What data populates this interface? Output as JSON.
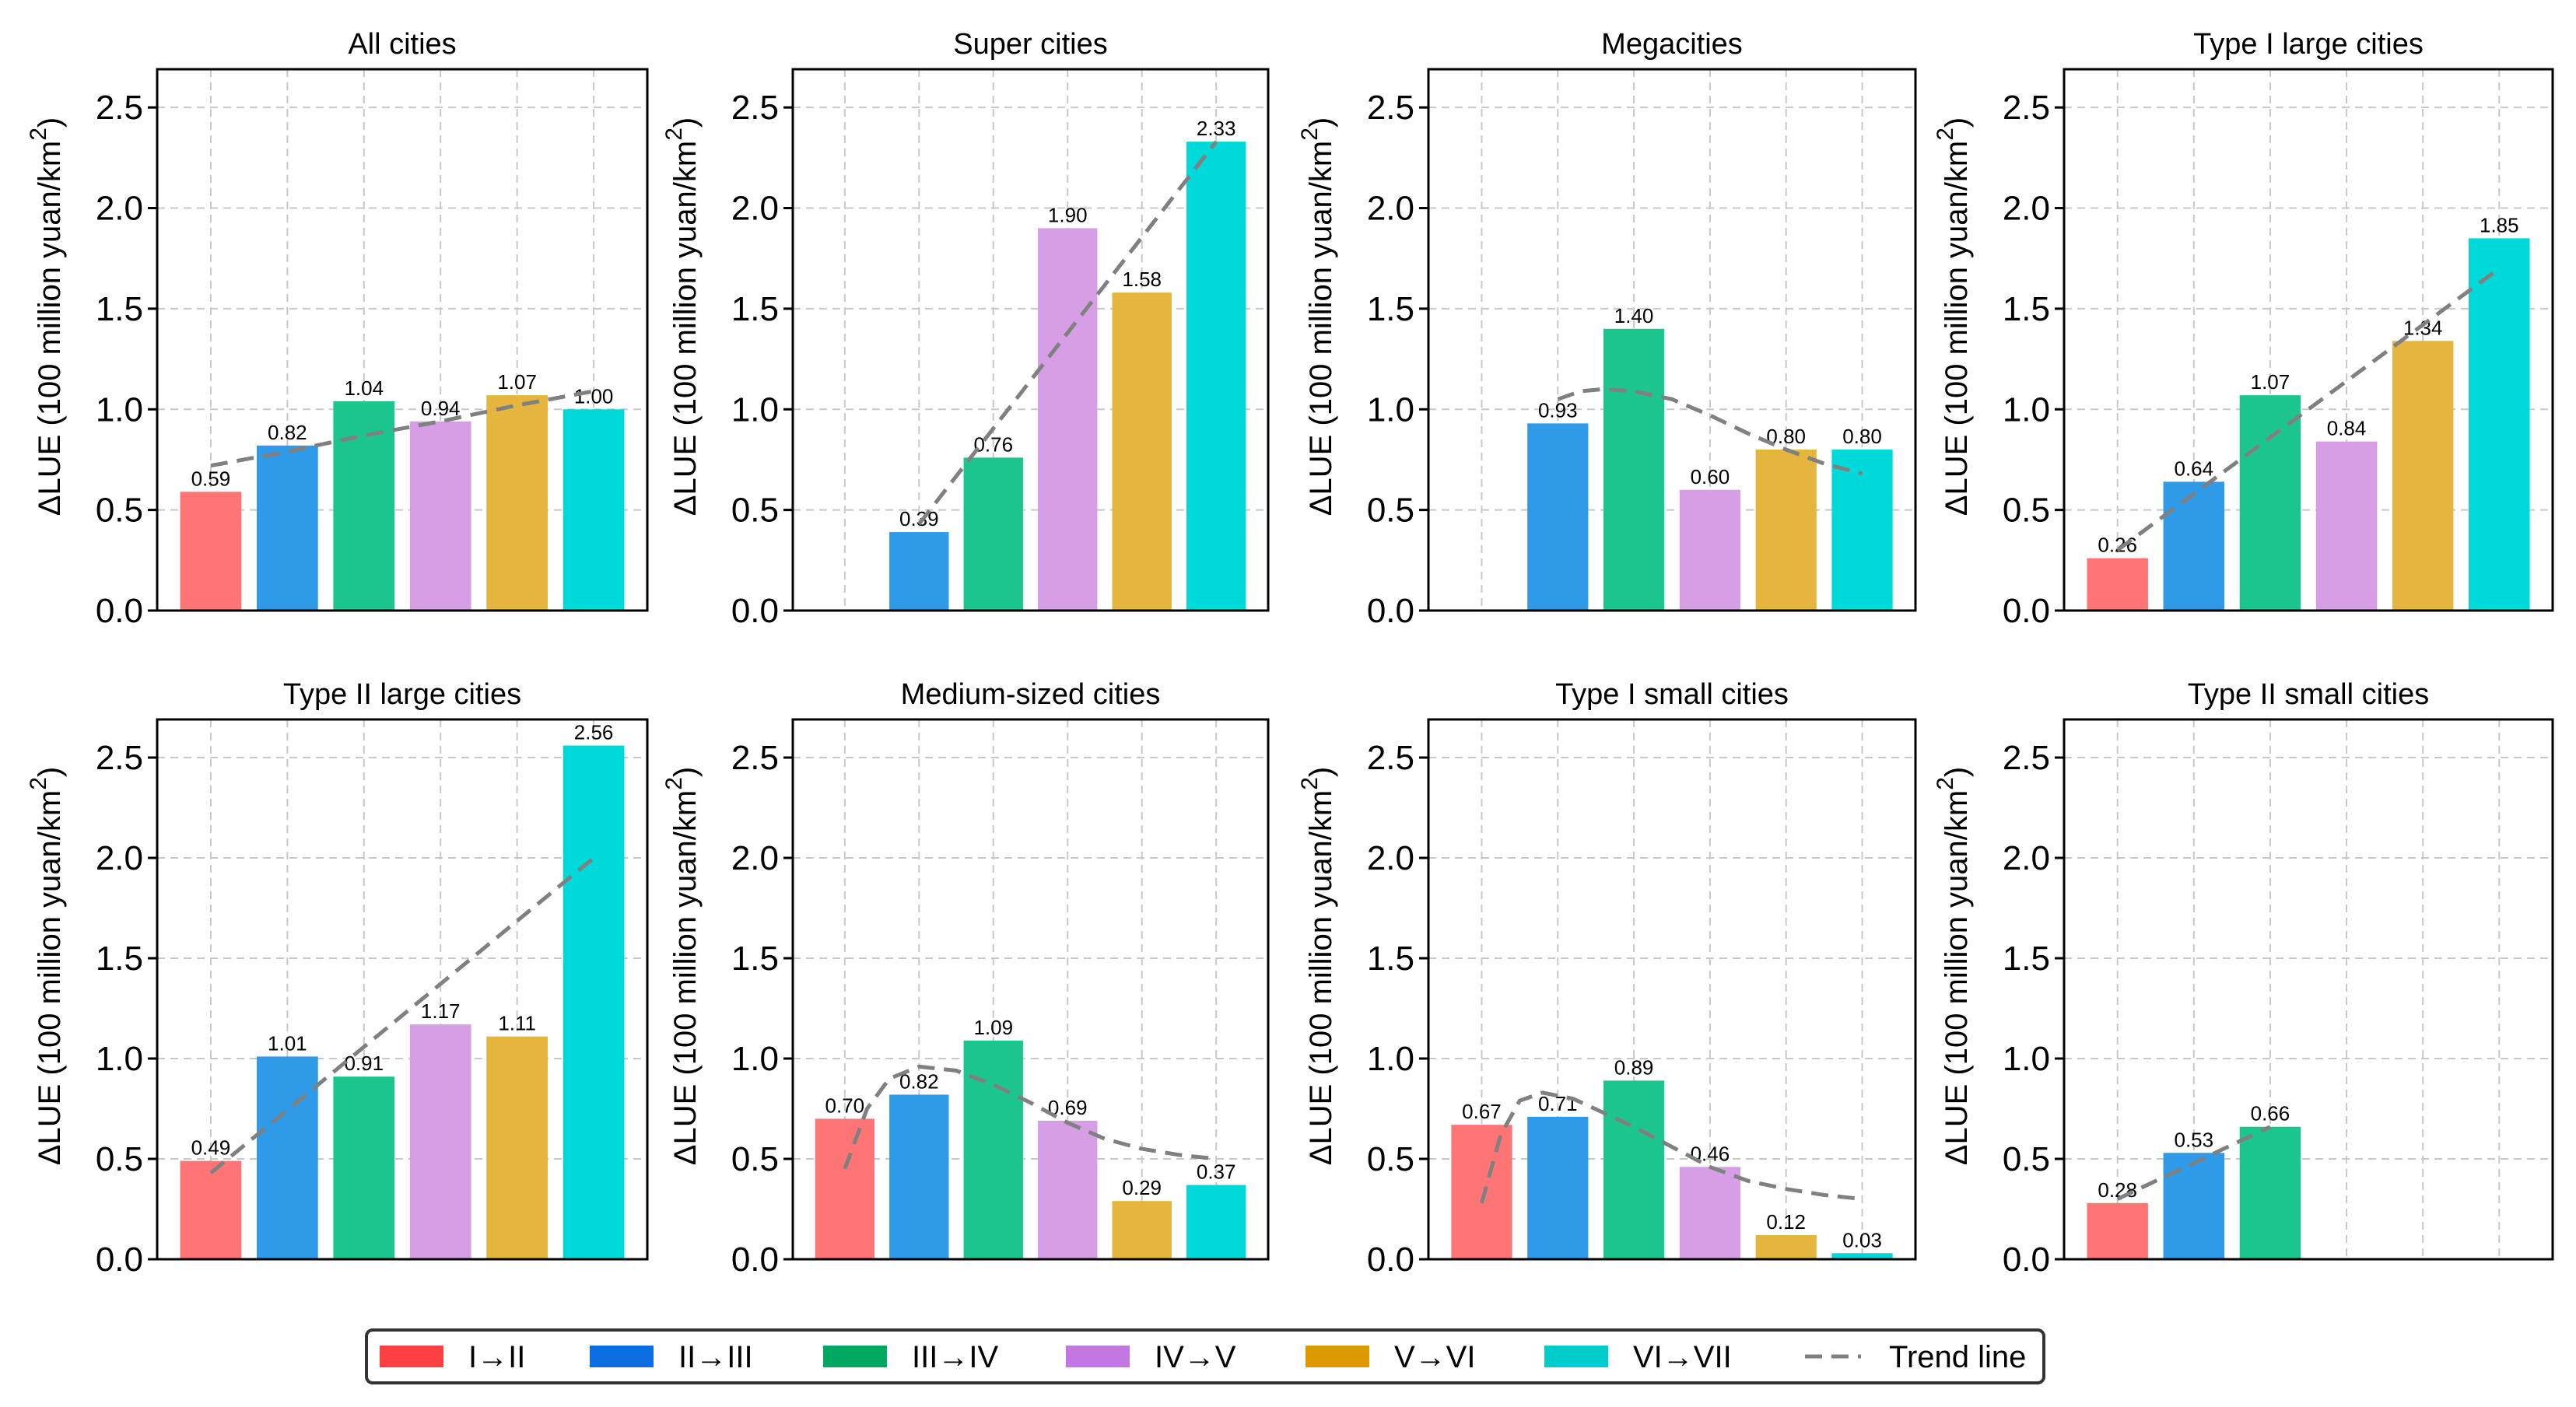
{
  "chart_data": {
    "type": "bar",
    "categories": [
      "I→II",
      "II→III",
      "III→IV",
      "IV→V",
      "V→VI",
      "VI→VII"
    ],
    "ylabel": "ΔLUE (100 million yuan/km",
    "ylabel_sup": "2",
    "ylabel_close": ")",
    "ylim": [
      0,
      2.69
    ],
    "yticks": [
      "0.0",
      "0.5",
      "1.0",
      "1.5",
      "2.0",
      "2.5"
    ],
    "grid": true,
    "legend_position": "bottom-center",
    "colors": {
      "bars": [
        "#FF7575",
        "#2E9AE8",
        "#1DC58E",
        "#D59EE5",
        "#E6B53E",
        "#00D9D9"
      ],
      "legend": [
        "#FF4040",
        "#0A6EE0",
        "#00A862",
        "#C278E0",
        "#DC9A00",
        "#00CCCC"
      ],
      "trend": "#808080"
    },
    "legend": {
      "items": [
        "I→II",
        "II→III",
        "III→IV",
        "IV→V",
        "V→VI",
        "VI→VII"
      ],
      "trend_label": "Trend line"
    },
    "panels": [
      {
        "title": "All cities",
        "values": [
          0.59,
          0.82,
          1.04,
          0.94,
          1.07,
          1.0
        ],
        "trend": [
          [
            0,
            0.72
          ],
          [
            1,
            0.79
          ],
          [
            2,
            0.87
          ],
          [
            3,
            0.94
          ],
          [
            4,
            1.02
          ],
          [
            5,
            1.09
          ]
        ]
      },
      {
        "title": "Super cities",
        "values": [
          null,
          0.39,
          0.76,
          1.9,
          1.58,
          2.33
        ],
        "trend": [
          [
            1,
            0.43
          ],
          [
            5,
            2.33
          ]
        ]
      },
      {
        "title": "Megacities",
        "values": [
          null,
          0.93,
          1.4,
          0.6,
          0.8,
          0.8
        ],
        "trend": [
          [
            1,
            1.05
          ],
          [
            1.3,
            1.09
          ],
          [
            1.6,
            1.1
          ],
          [
            2,
            1.09
          ],
          [
            2.5,
            1.05
          ],
          [
            3,
            0.97
          ],
          [
            3.5,
            0.88
          ],
          [
            4,
            0.8
          ],
          [
            4.5,
            0.73
          ],
          [
            5,
            0.68
          ]
        ]
      },
      {
        "title": "Type I large cities",
        "values": [
          0.26,
          0.64,
          1.07,
          0.84,
          1.34,
          1.85
        ],
        "trend": [
          [
            0,
            0.3
          ],
          [
            5,
            1.7
          ]
        ]
      },
      {
        "title": "Type II large cities",
        "values": [
          0.49,
          1.01,
          0.91,
          1.17,
          1.11,
          2.56
        ],
        "trend": [
          [
            0,
            0.43
          ],
          [
            5,
            2.0
          ]
        ]
      },
      {
        "title": "Medium-sized cities",
        "values": [
          0.7,
          0.82,
          1.09,
          0.69,
          0.29,
          0.37
        ],
        "trend": [
          [
            0,
            0.45
          ],
          [
            0.3,
            0.75
          ],
          [
            0.6,
            0.9
          ],
          [
            1,
            0.96
          ],
          [
            1.5,
            0.94
          ],
          [
            2,
            0.87
          ],
          [
            2.5,
            0.78
          ],
          [
            3,
            0.68
          ],
          [
            3.5,
            0.6
          ],
          [
            4,
            0.55
          ],
          [
            4.5,
            0.52
          ],
          [
            5,
            0.5
          ]
        ]
      },
      {
        "title": "Type I small cities",
        "values": [
          0.67,
          0.71,
          0.89,
          0.46,
          0.12,
          0.03
        ],
        "trend": [
          [
            0,
            0.28
          ],
          [
            0.25,
            0.62
          ],
          [
            0.5,
            0.79
          ],
          [
            0.8,
            0.83
          ],
          [
            1.2,
            0.8
          ],
          [
            1.6,
            0.73
          ],
          [
            2,
            0.66
          ],
          [
            2.5,
            0.56
          ],
          [
            3,
            0.46
          ],
          [
            3.5,
            0.39
          ],
          [
            4,
            0.35
          ],
          [
            4.5,
            0.32
          ],
          [
            5,
            0.3
          ]
        ]
      },
      {
        "title": "Type II small cities",
        "values": [
          0.28,
          0.53,
          0.66,
          null,
          null,
          null
        ],
        "trend": [
          [
            0,
            0.3
          ],
          [
            1,
            0.48
          ],
          [
            2,
            0.66
          ]
        ]
      }
    ]
  }
}
